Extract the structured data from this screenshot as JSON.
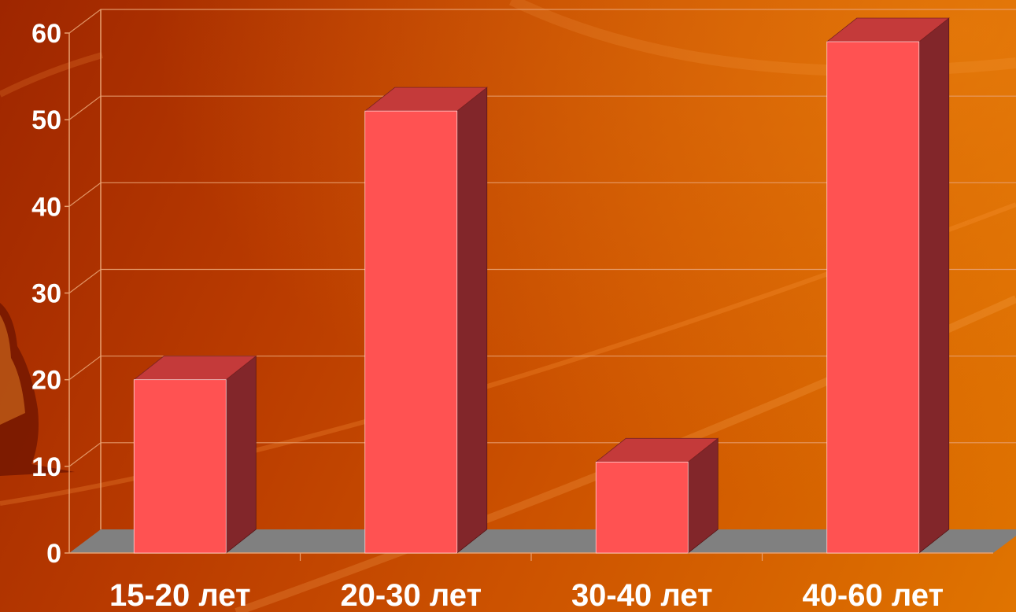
{
  "chart_data": {
    "type": "bar",
    "categories": [
      "15-20 лет",
      "20-30 лет",
      "30-40 лет",
      "40-60 лет"
    ],
    "values": [
      20,
      51,
      10.5,
      59
    ],
    "yticks": [
      "0",
      "10",
      "20",
      "30",
      "40",
      "50",
      "60"
    ],
    "ylim": [
      0,
      60
    ],
    "grid": true,
    "colors": {
      "bar_front": "#ff5252",
      "bar_top": "#c43a3a",
      "bar_side": "#82262a",
      "floor": "#808080",
      "grid": "#e8a070"
    }
  }
}
